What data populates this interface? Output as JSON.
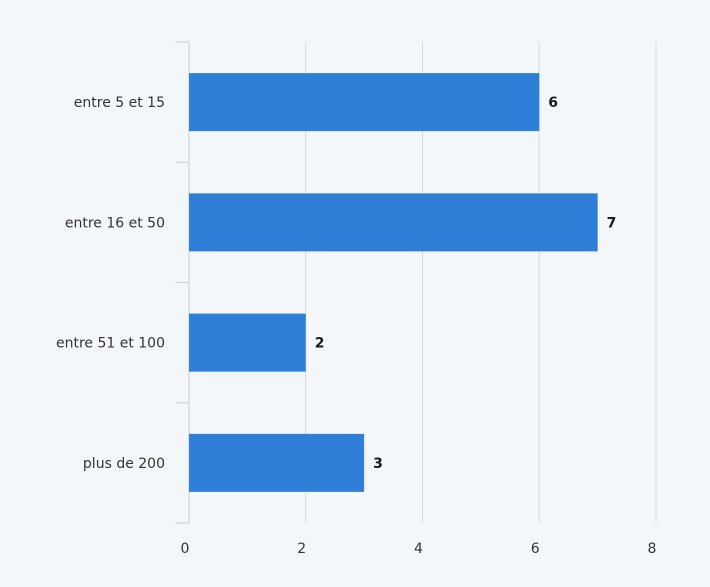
{
  "chart_data": {
    "type": "bar",
    "orientation": "horizontal",
    "categories": [
      "entre 5 et 15",
      "entre 16 et 50",
      "entre 51 et 100",
      "plus de 200"
    ],
    "values": [
      6,
      7,
      2,
      3
    ],
    "x_ticks": [
      "0",
      "2",
      "4",
      "6",
      "8"
    ],
    "xlim": [
      0,
      8
    ],
    "title": "",
    "xlabel": "",
    "ylabel": "",
    "grid": true,
    "legend": "none",
    "show_data_labels": true
  },
  "colors": {
    "bar": "#2f7ed8",
    "background": "#f4f7fa"
  }
}
